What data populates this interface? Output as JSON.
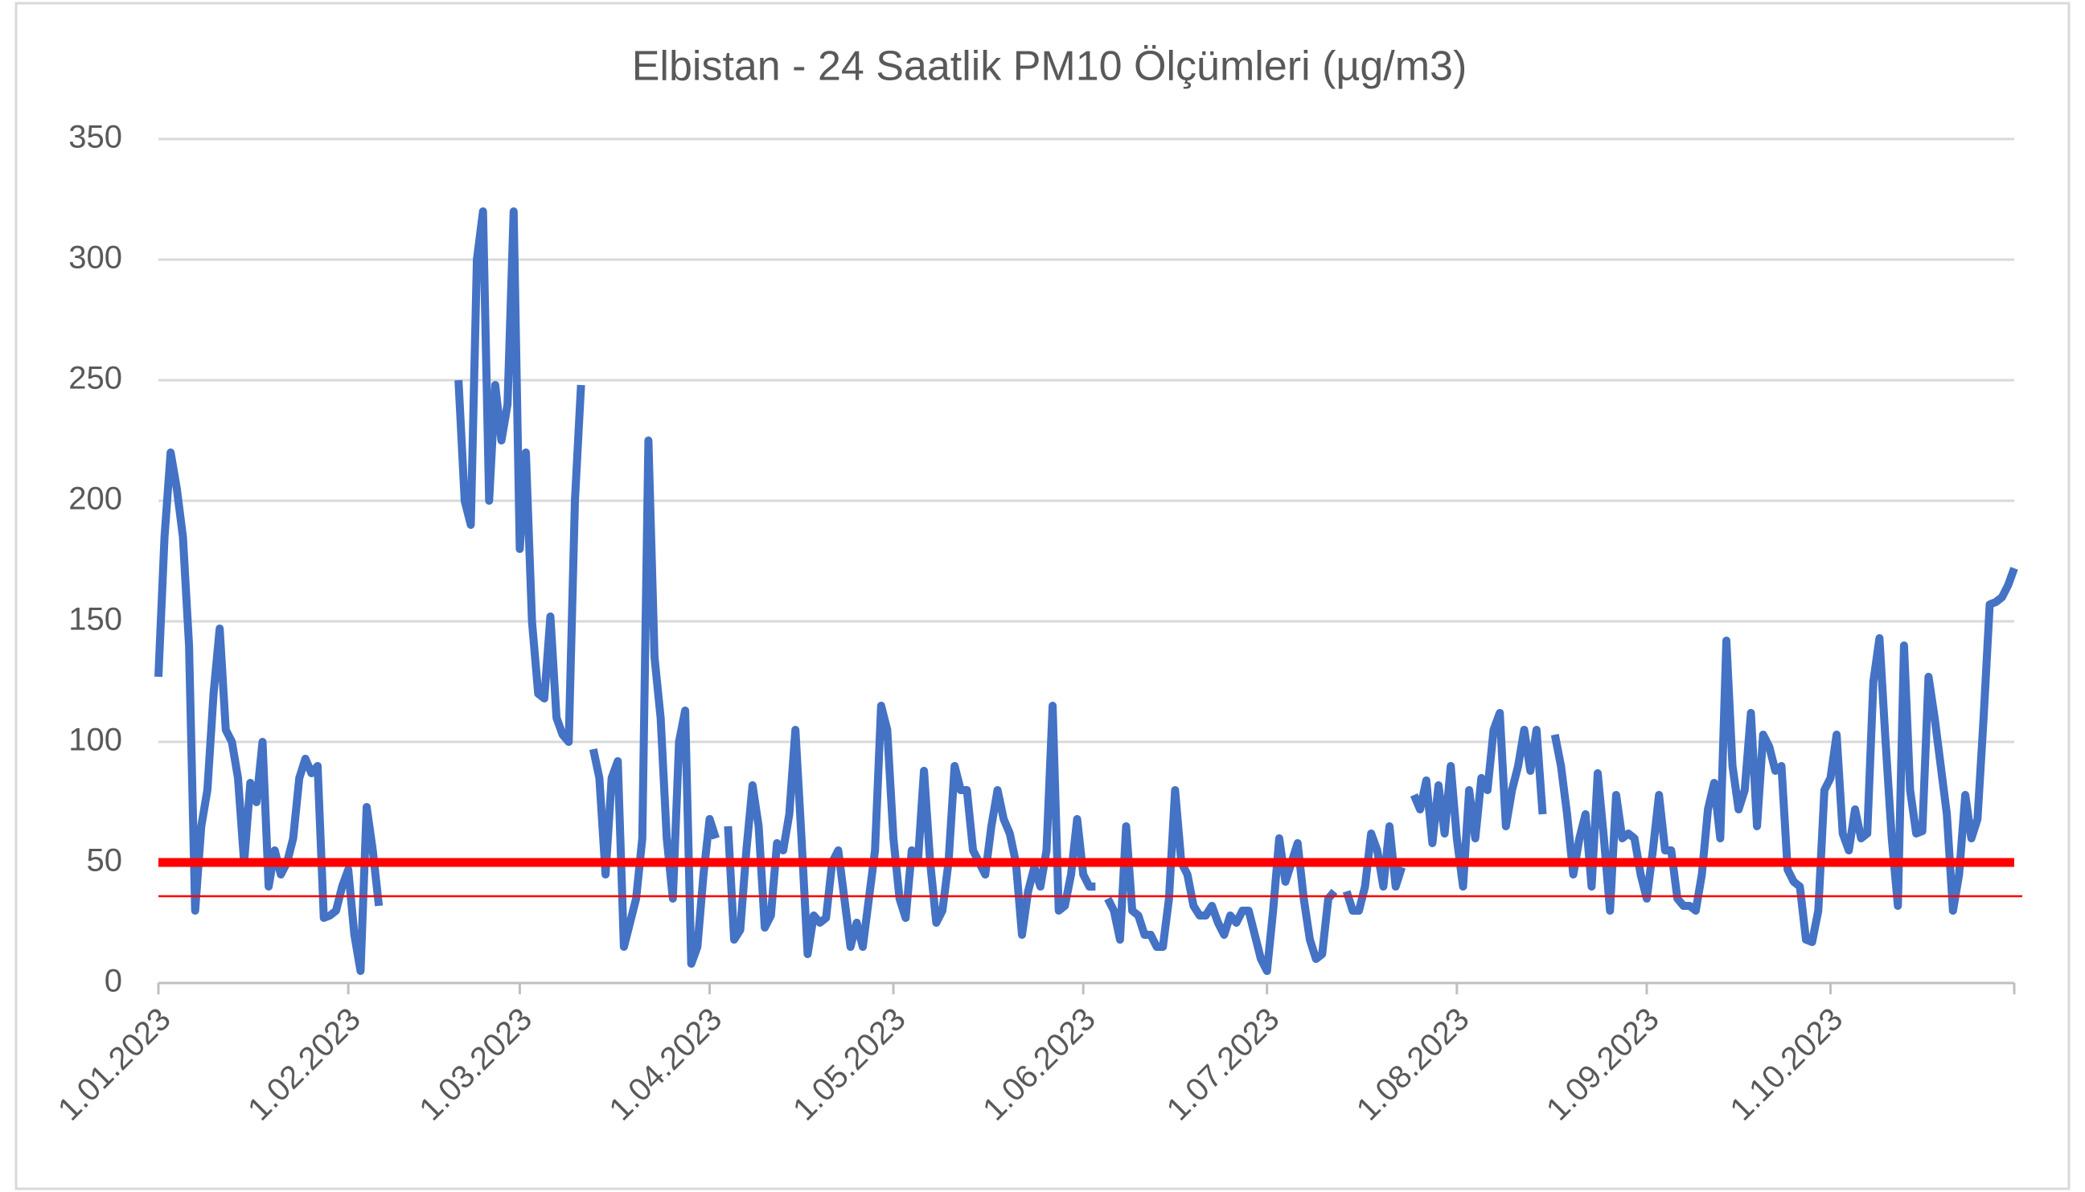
{
  "chart_data": {
    "type": "line",
    "title": "Elbistan - 24 Saatlik PM10 Ölçümleri (µg/m3)",
    "categories": [
      "1.01.2023",
      null,
      null,
      null,
      null,
      null,
      null,
      null,
      null,
      null,
      null,
      null,
      null,
      null,
      null,
      null,
      null,
      null,
      null,
      null,
      null,
      null,
      null,
      null,
      null,
      null,
      null,
      null,
      null,
      null,
      null,
      "1.02.2023",
      null,
      null,
      null,
      null,
      null,
      null,
      null,
      null,
      null,
      null,
      null,
      null,
      null,
      null,
      null,
      null,
      null,
      null,
      null,
      null,
      null,
      null,
      null,
      null,
      null,
      null,
      null,
      "1.03.2023",
      null,
      null,
      null,
      null,
      null,
      null,
      null,
      null,
      null,
      null,
      null,
      null,
      null,
      null,
      null,
      null,
      null,
      null,
      null,
      null,
      null,
      null,
      null,
      null,
      null,
      null,
      null,
      null,
      null,
      null,
      "1.04.2023",
      null,
      null,
      null,
      null,
      null,
      null,
      null,
      null,
      null,
      null,
      null,
      null,
      null,
      null,
      null,
      null,
      null,
      null,
      null,
      null,
      null,
      null,
      null,
      null,
      null,
      null,
      null,
      null,
      null,
      "1.05.2023",
      null,
      null,
      null,
      null,
      null,
      null,
      null,
      null,
      null,
      null,
      null,
      null,
      null,
      null,
      null,
      null,
      null,
      null,
      null,
      null,
      null,
      null,
      null,
      null,
      null,
      null,
      null,
      null,
      null,
      null,
      "1.06.2023",
      null,
      null,
      null,
      null,
      null,
      null,
      null,
      null,
      null,
      null,
      null,
      null,
      null,
      null,
      null,
      null,
      null,
      null,
      null,
      null,
      null,
      null,
      null,
      null,
      null,
      null,
      null,
      null,
      null,
      "1.07.2023",
      null,
      null,
      null,
      null,
      null,
      null,
      null,
      null,
      null,
      null,
      null,
      null,
      null,
      null,
      null,
      null,
      null,
      null,
      null,
      null,
      null,
      null,
      null,
      null,
      null,
      null,
      null,
      null,
      null,
      null,
      "1.08.2023",
      null,
      null,
      null,
      null,
      null,
      null,
      null,
      null,
      null,
      null,
      null,
      null,
      null,
      null,
      null,
      null,
      null,
      null,
      null,
      null,
      null,
      null,
      null,
      null,
      null,
      null,
      null,
      null,
      null,
      null,
      "1.09.2023",
      null,
      null,
      null,
      null,
      null,
      null,
      null,
      null,
      null,
      null,
      null,
      null,
      null,
      null,
      null,
      null,
      null,
      null,
      null,
      null,
      null,
      null,
      null,
      null,
      null,
      null,
      null,
      null,
      null,
      "1.10.2023",
      null,
      null,
      null,
      null,
      null,
      null,
      null,
      null,
      null,
      null,
      null,
      null,
      null,
      null,
      null,
      null,
      null,
      null,
      null,
      null,
      null,
      null,
      null,
      null,
      null,
      null,
      null,
      null,
      null,
      null
    ],
    "series": [
      {
        "color": "#4472c4",
        "values": [
          127,
          185,
          220,
          205,
          185,
          140,
          30,
          65,
          80,
          120,
          147,
          105,
          100,
          85,
          50,
          83,
          75,
          100,
          40,
          55,
          45,
          50,
          60,
          85,
          93,
          87,
          90,
          27,
          28,
          30,
          40,
          47,
          20,
          5,
          73,
          55,
          32,
          null,
          null,
          null,
          null,
          null,
          null,
          null,
          null,
          null,
          null,
          null,
          null,
          250,
          200,
          190,
          300,
          320,
          200,
          248,
          225,
          240,
          320,
          180,
          220,
          150,
          120,
          118,
          152,
          110,
          103,
          100,
          200,
          248,
          null,
          97,
          85,
          45,
          85,
          92,
          15,
          25,
          35,
          60,
          225,
          135,
          110,
          60,
          35,
          100,
          113,
          8,
          15,
          45,
          68,
          60,
          null,
          65,
          18,
          22,
          55,
          82,
          65,
          23,
          28,
          58,
          55,
          70,
          105,
          60,
          12,
          28,
          25,
          27,
          50,
          55,
          35,
          15,
          25,
          15,
          35,
          55,
          115,
          105,
          60,
          35,
          27,
          55,
          50,
          88,
          50,
          25,
          30,
          50,
          90,
          80,
          80,
          55,
          50,
          45,
          65,
          80,
          68,
          62,
          50,
          20,
          38,
          48,
          40,
          55,
          115,
          30,
          32,
          45,
          68,
          45,
          40,
          40,
          null,
          35,
          30,
          18,
          65,
          30,
          28,
          20,
          20,
          15,
          15,
          35,
          80,
          50,
          45,
          32,
          28,
          28,
          32,
          25,
          20,
          28,
          25,
          30,
          30,
          20,
          10,
          5,
          30,
          60,
          42,
          50,
          58,
          35,
          18,
          10,
          12,
          35,
          38,
          null,
          38,
          30,
          30,
          40,
          62,
          55,
          40,
          65,
          40,
          48,
          null,
          78,
          72,
          84,
          58,
          82,
          62,
          90,
          60,
          40,
          80,
          60,
          85,
          80,
          105,
          112,
          65,
          80,
          90,
          105,
          88,
          105,
          70,
          null,
          103,
          90,
          70,
          45,
          60,
          70,
          40,
          87,
          60,
          30,
          78,
          60,
          62,
          60,
          45,
          35,
          55,
          78,
          55,
          55,
          35,
          32,
          32,
          30,
          45,
          72,
          83,
          60,
          142,
          90,
          72,
          80,
          112,
          65,
          103,
          98,
          88,
          90,
          47,
          42,
          40,
          18,
          17,
          30,
          80,
          85,
          103,
          62,
          55,
          72,
          60,
          62,
          125,
          143,
          100,
          60,
          32,
          140,
          80,
          62,
          63,
          127,
          110,
          90,
          70,
          30,
          45,
          78,
          60,
          68,
          110,
          157,
          158,
          160,
          165,
          172
        ]
      }
    ],
    "reference_lines": [
      {
        "value": 50,
        "color": "#ff0000"
      },
      {
        "value": 36,
        "color": "#ff0000"
      }
    ],
    "ylim": [
      0,
      350
    ],
    "yticks": [
      0,
      50,
      100,
      150,
      200,
      250,
      300,
      350
    ],
    "grid": true
  }
}
